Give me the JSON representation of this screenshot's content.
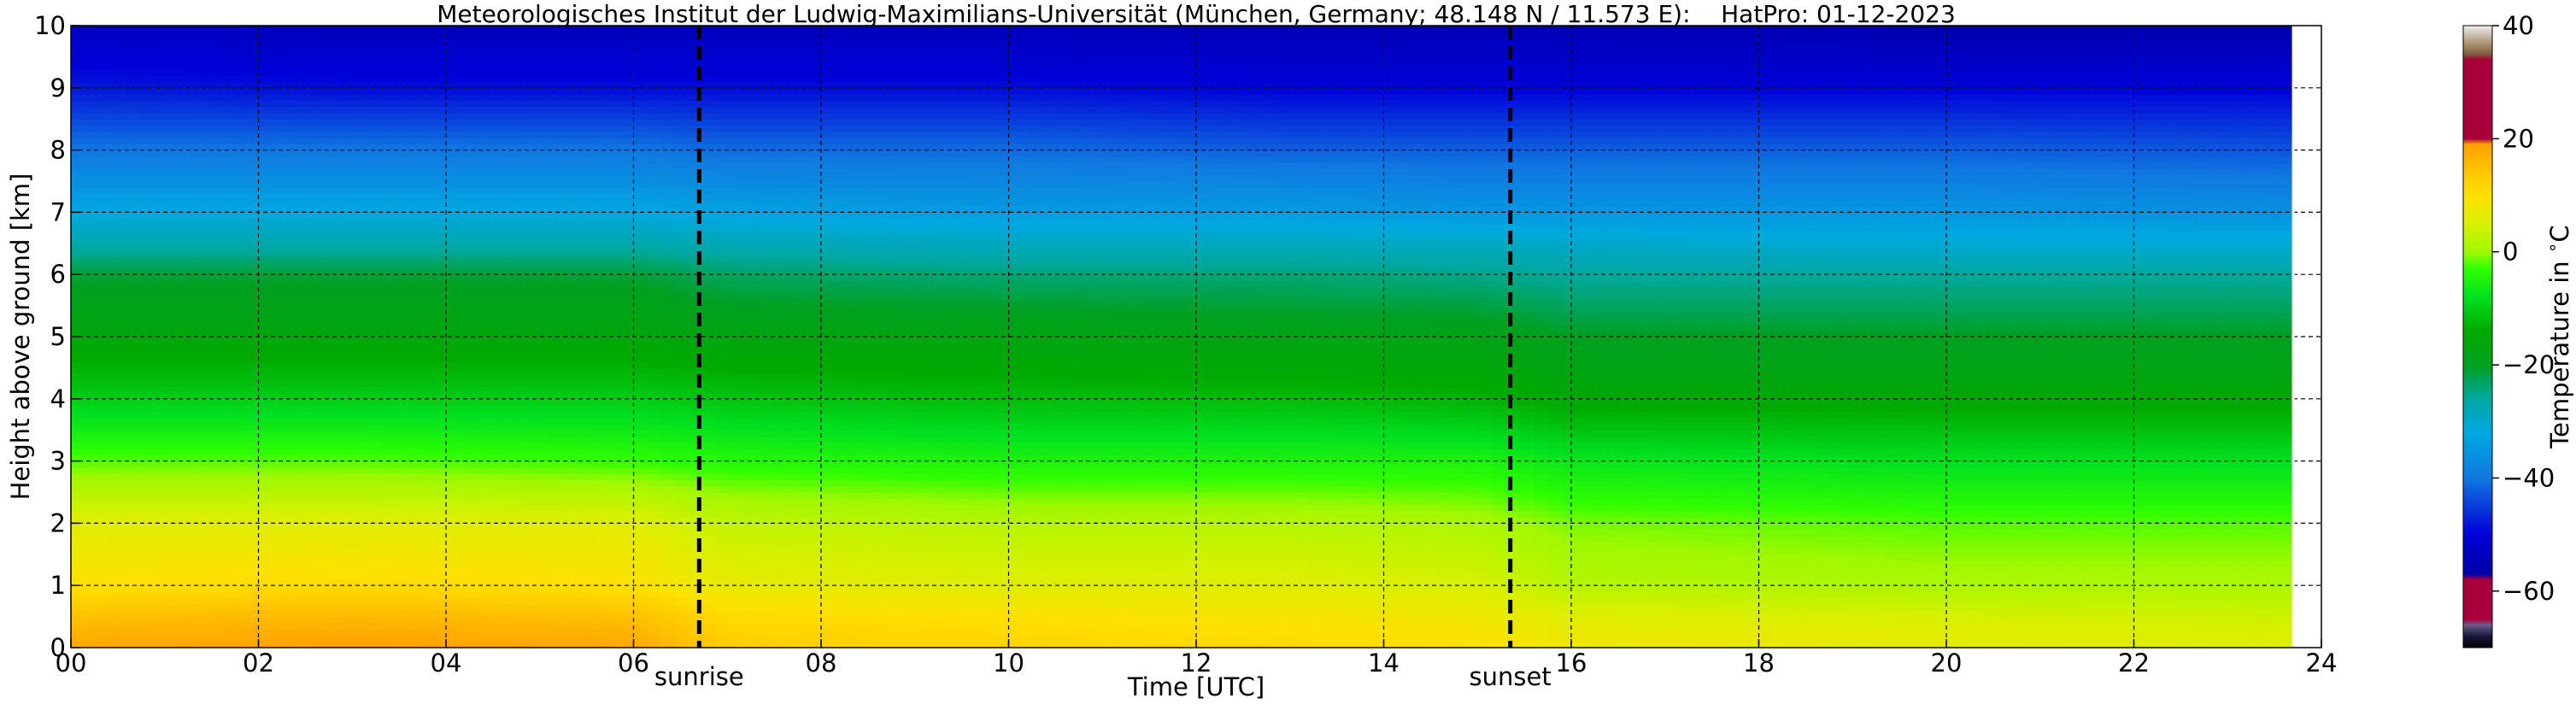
{
  "chart_data": {
    "type": "heatmap",
    "title": "Meteorologisches Institut der Ludwig-Maximilians-Universität (München, Germany; 48.148 N / 11.573 E):    HatPro: 01-12-2023",
    "xlabel": "Time [UTC]",
    "ylabel": "Height above ground [km]",
    "xlim": [
      0,
      24
    ],
    "ylim": [
      0,
      10
    ],
    "x_ticks": [
      0,
      2,
      4,
      6,
      8,
      10,
      12,
      14,
      16,
      18,
      20,
      22,
      24
    ],
    "x_tick_labels": [
      "00",
      "02",
      "04",
      "06",
      "08",
      "10",
      "12",
      "14",
      "16",
      "18",
      "20",
      "22",
      "24"
    ],
    "y_ticks": [
      0,
      1,
      2,
      3,
      4,
      5,
      6,
      7,
      8,
      9,
      10
    ],
    "y_tick_labels": [
      "0",
      "1",
      "2",
      "3",
      "4",
      "5",
      "6",
      "7",
      "8",
      "9",
      "10"
    ],
    "grid": true,
    "data_end_time": 23.7,
    "colorbar": {
      "label": "Temperature in $^\\circ$C",
      "range": [
        -70,
        40
      ],
      "ticks": [
        -60,
        -40,
        -20,
        0,
        20,
        40
      ],
      "tick_labels": [
        "−60",
        "−40",
        "−20",
        "0",
        "20",
        "40"
      ],
      "colors": [
        {
          "value": -70,
          "color": "#000000"
        },
        {
          "value": -68,
          "color": "#18163a"
        },
        {
          "value": -66,
          "color": "#6a5c8a"
        },
        {
          "value": -65,
          "color": "#a8003a"
        },
        {
          "value": -58,
          "color": "#a8003a"
        },
        {
          "value": -57,
          "color": "#0000aa"
        },
        {
          "value": -50,
          "color": "#0000d8"
        },
        {
          "value": -40,
          "color": "#1078e0"
        },
        {
          "value": -32,
          "color": "#00a8e0"
        },
        {
          "value": -26,
          "color": "#00a8a0"
        },
        {
          "value": -20,
          "color": "#00a020"
        },
        {
          "value": -14,
          "color": "#00aa00"
        },
        {
          "value": -8,
          "color": "#00e020"
        },
        {
          "value": -3,
          "color": "#30ff00"
        },
        {
          "value": 0,
          "color": "#a0f800"
        },
        {
          "value": 5,
          "color": "#d8f000"
        },
        {
          "value": 10,
          "color": "#ffe000"
        },
        {
          "value": 15,
          "color": "#ffc000"
        },
        {
          "value": 19,
          "color": "#ffa000"
        },
        {
          "value": 20,
          "color": "#a8003a"
        },
        {
          "value": 34,
          "color": "#a8003a"
        },
        {
          "value": 35,
          "color": "#806040"
        },
        {
          "value": 37,
          "color": "#b09878"
        },
        {
          "value": 39,
          "color": "#d8d0c8"
        },
        {
          "value": 40,
          "color": "#f0f0f0"
        }
      ]
    },
    "annotations": [
      {
        "label": "sunrise",
        "time": 6.7
      },
      {
        "label": "sunset",
        "time": 15.35
      }
    ],
    "profile_heights_km": [
      0,
      0.5,
      1,
      2,
      3,
      4,
      5,
      6,
      6.4,
      7,
      8,
      9,
      10
    ],
    "profiles": [
      {
        "time": 0,
        "temps": [
          18,
          15,
          10,
          6,
          -2,
          -10,
          -16,
          -21,
          -26,
          -32,
          -40,
          -48,
          -53
        ]
      },
      {
        "time": 3,
        "temps": [
          19,
          16,
          11,
          6,
          -2,
          -10,
          -16,
          -21,
          -26,
          -32,
          -40,
          -49,
          -54
        ]
      },
      {
        "time": 6,
        "temps": [
          18,
          15,
          10,
          6,
          -3,
          -10,
          -16,
          -21,
          -26,
          -32,
          -40,
          -49,
          -54
        ]
      },
      {
        "time": 7,
        "temps": [
          13,
          11,
          7,
          3,
          -4,
          -11,
          -17,
          -23,
          -27,
          -33,
          -41,
          -49,
          -54
        ]
      },
      {
        "time": 10,
        "temps": [
          12,
          10,
          6,
          2,
          -5,
          -12,
          -17,
          -24,
          -28,
          -34,
          -41,
          -49,
          -54
        ]
      },
      {
        "time": 13,
        "temps": [
          11,
          9,
          6,
          2,
          -5,
          -12,
          -18,
          -24,
          -28,
          -34,
          -42,
          -50,
          -55
        ]
      },
      {
        "time": 15,
        "temps": [
          10,
          8,
          5,
          1,
          -5,
          -13,
          -18,
          -25,
          -28,
          -35,
          -42,
          -50,
          -55
        ]
      },
      {
        "time": 16,
        "temps": [
          8,
          6,
          2,
          -1,
          -7,
          -15,
          -20,
          -26,
          -29,
          -35,
          -42,
          -50,
          -55
        ]
      },
      {
        "time": 20,
        "temps": [
          7,
          5,
          1,
          -2,
          -8,
          -15,
          -20,
          -26,
          -30,
          -35,
          -42,
          -50,
          -56
        ]
      },
      {
        "time": 24,
        "temps": [
          6,
          4,
          1,
          -2,
          -8,
          -15,
          -20,
          -26,
          -30,
          -36,
          -43,
          -50,
          -56
        ]
      }
    ]
  }
}
